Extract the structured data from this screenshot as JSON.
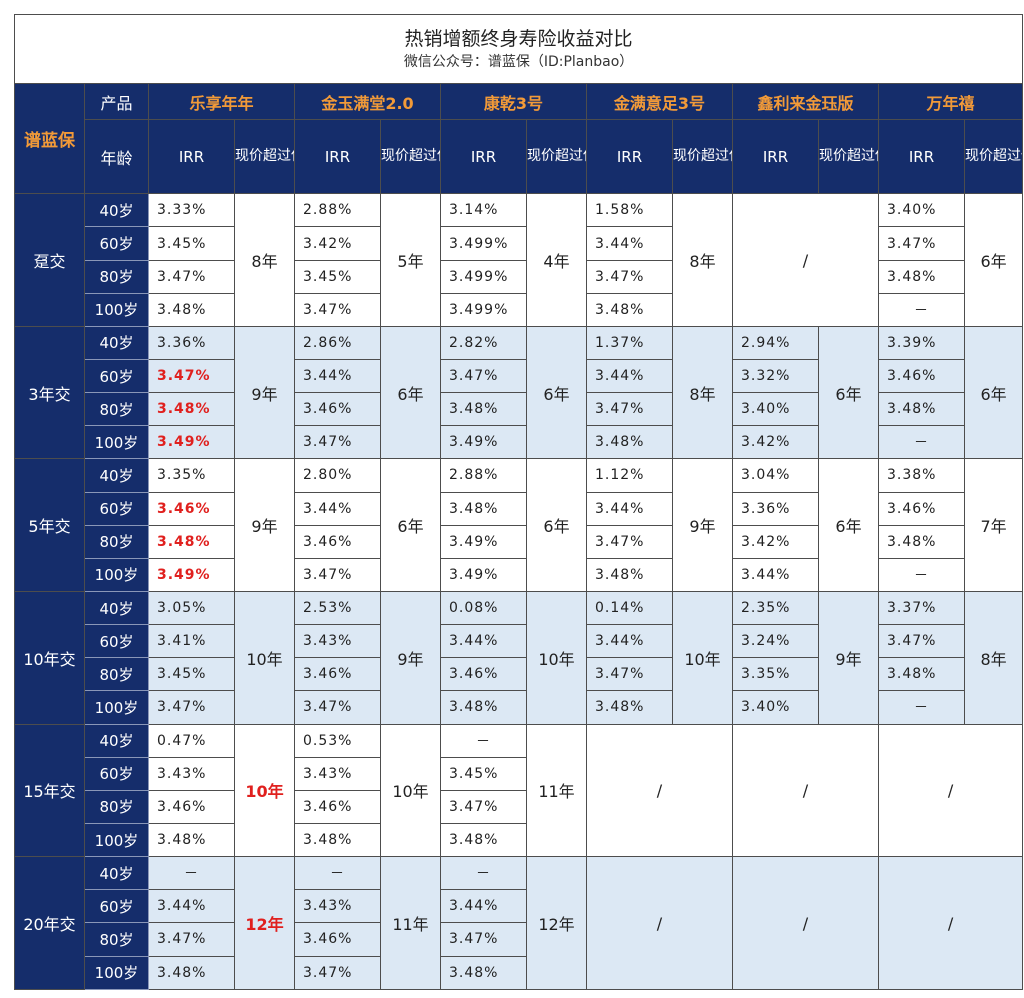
{
  "title": "热销增额终身寿险收益对比",
  "subtitle": "微信公众号：谱蓝保（ID:Planbao）",
  "brand": "谱蓝保",
  "header": {
    "product_label": "产品",
    "age_label": "年龄",
    "irr_label": "IRR",
    "breakeven_label": "现价超过保费时间点",
    "products": [
      "乐享年年",
      "金玉满堂2.0",
      "康乾3号",
      "金满意足3号",
      "鑫利来金珏版",
      "万年禧"
    ]
  },
  "ages": [
    "40岁",
    "60岁",
    "80岁",
    "100岁"
  ],
  "groups": [
    {
      "name": "趸交",
      "shaded": false,
      "products": [
        {
          "irr": [
            "3.33%",
            "3.45%",
            "3.47%",
            "3.48%"
          ],
          "red": [
            false,
            false,
            false,
            false
          ],
          "time": "8年",
          "time_red": false
        },
        {
          "irr": [
            "2.88%",
            "3.42%",
            "3.45%",
            "3.47%"
          ],
          "red": [
            false,
            false,
            false,
            false
          ],
          "time": "5年",
          "time_red": false
        },
        {
          "irr": [
            "3.14%",
            "3.499%",
            "3.499%",
            "3.499%"
          ],
          "red": [
            false,
            false,
            false,
            false
          ],
          "time": "4年",
          "time_red": false
        },
        {
          "irr": [
            "1.58%",
            "3.44%",
            "3.47%",
            "3.48%"
          ],
          "red": [
            false,
            false,
            false,
            false
          ],
          "time": "8年",
          "time_red": false
        },
        {
          "na": "/"
        },
        {
          "irr": [
            "3.40%",
            "3.47%",
            "3.48%",
            "－"
          ],
          "red": [
            false,
            false,
            false,
            false
          ],
          "time": "6年",
          "time_red": false
        }
      ]
    },
    {
      "name": "3年交",
      "shaded": true,
      "products": [
        {
          "irr": [
            "3.36%",
            "3.47%",
            "3.48%",
            "3.49%"
          ],
          "red": [
            false,
            true,
            true,
            true
          ],
          "time": "9年",
          "time_red": false
        },
        {
          "irr": [
            "2.86%",
            "3.44%",
            "3.46%",
            "3.47%"
          ],
          "red": [
            false,
            false,
            false,
            false
          ],
          "time": "6年",
          "time_red": false
        },
        {
          "irr": [
            "2.82%",
            "3.47%",
            "3.48%",
            "3.49%"
          ],
          "red": [
            false,
            false,
            false,
            false
          ],
          "time": "6年",
          "time_red": false
        },
        {
          "irr": [
            "1.37%",
            "3.44%",
            "3.47%",
            "3.48%"
          ],
          "red": [
            false,
            false,
            false,
            false
          ],
          "time": "8年",
          "time_red": false
        },
        {
          "irr": [
            "2.94%",
            "3.32%",
            "3.40%",
            "3.42%"
          ],
          "red": [
            false,
            false,
            false,
            false
          ],
          "time": "6年",
          "time_red": false
        },
        {
          "irr": [
            "3.39%",
            "3.46%",
            "3.48%",
            "－"
          ],
          "red": [
            false,
            false,
            false,
            false
          ],
          "time": "6年",
          "time_red": false
        }
      ]
    },
    {
      "name": "5年交",
      "shaded": false,
      "products": [
        {
          "irr": [
            "3.35%",
            "3.46%",
            "3.48%",
            "3.49%"
          ],
          "red": [
            false,
            true,
            true,
            true
          ],
          "time": "9年",
          "time_red": false
        },
        {
          "irr": [
            "2.80%",
            "3.44%",
            "3.46%",
            "3.47%"
          ],
          "red": [
            false,
            false,
            false,
            false
          ],
          "time": "6年",
          "time_red": false
        },
        {
          "irr": [
            "2.88%",
            "3.48%",
            "3.49%",
            "3.49%"
          ],
          "red": [
            false,
            false,
            false,
            false
          ],
          "time": "6年",
          "time_red": false
        },
        {
          "irr": [
            "1.12%",
            "3.44%",
            "3.47%",
            "3.48%"
          ],
          "red": [
            false,
            false,
            false,
            false
          ],
          "time": "9年",
          "time_red": false
        },
        {
          "irr": [
            "3.04%",
            "3.36%",
            "3.42%",
            "3.44%"
          ],
          "red": [
            false,
            false,
            false,
            false
          ],
          "time": "6年",
          "time_red": false
        },
        {
          "irr": [
            "3.38%",
            "3.46%",
            "3.48%",
            "－"
          ],
          "red": [
            false,
            false,
            false,
            false
          ],
          "time": "7年",
          "time_red": false
        }
      ]
    },
    {
      "name": "10年交",
      "shaded": true,
      "products": [
        {
          "irr": [
            "3.05%",
            "3.41%",
            "3.45%",
            "3.47%"
          ],
          "red": [
            false,
            false,
            false,
            false
          ],
          "time": "10年",
          "time_red": false
        },
        {
          "irr": [
            "2.53%",
            "3.43%",
            "3.46%",
            "3.47%"
          ],
          "red": [
            false,
            false,
            false,
            false
          ],
          "time": "9年",
          "time_red": false
        },
        {
          "irr": [
            "0.08%",
            "3.44%",
            "3.46%",
            "3.48%"
          ],
          "red": [
            false,
            false,
            false,
            false
          ],
          "time": "10年",
          "time_red": false
        },
        {
          "irr": [
            "0.14%",
            "3.44%",
            "3.47%",
            "3.48%"
          ],
          "red": [
            false,
            false,
            false,
            false
          ],
          "time": "10年",
          "time_red": false
        },
        {
          "irr": [
            "2.35%",
            "3.24%",
            "3.35%",
            "3.40%"
          ],
          "red": [
            false,
            false,
            false,
            false
          ],
          "time": "9年",
          "time_red": false
        },
        {
          "irr": [
            "3.37%",
            "3.47%",
            "3.48%",
            "－"
          ],
          "red": [
            false,
            false,
            false,
            false
          ],
          "time": "8年",
          "time_red": false
        }
      ]
    },
    {
      "name": "15年交",
      "shaded": false,
      "products": [
        {
          "irr": [
            "0.47%",
            "3.43%",
            "3.46%",
            "3.48%"
          ],
          "red": [
            false,
            false,
            false,
            false
          ],
          "time": "10年",
          "time_red": true
        },
        {
          "irr": [
            "0.53%",
            "3.43%",
            "3.46%",
            "3.48%"
          ],
          "red": [
            false,
            false,
            false,
            false
          ],
          "time": "10年",
          "time_red": false
        },
        {
          "irr": [
            "－",
            "3.45%",
            "3.47%",
            "3.48%"
          ],
          "red": [
            false,
            false,
            false,
            false
          ],
          "time": "11年",
          "time_red": false
        },
        {
          "na": "/"
        },
        {
          "na": "/"
        },
        {
          "na": "/"
        }
      ]
    },
    {
      "name": "20年交",
      "shaded": true,
      "products": [
        {
          "irr": [
            "－",
            "3.44%",
            "3.47%",
            "3.48%"
          ],
          "red": [
            false,
            false,
            false,
            false
          ],
          "time": "12年",
          "time_red": true
        },
        {
          "irr": [
            "－",
            "3.43%",
            "3.46%",
            "3.47%"
          ],
          "red": [
            false,
            false,
            false,
            false
          ],
          "time": "11年",
          "time_red": false
        },
        {
          "irr": [
            "－",
            "3.44%",
            "3.47%",
            "3.48%"
          ],
          "red": [
            false,
            false,
            false,
            false
          ],
          "time": "12年",
          "time_red": false
        },
        {
          "na": "/"
        },
        {
          "na": "/"
        },
        {
          "na": "/"
        }
      ]
    }
  ]
}
